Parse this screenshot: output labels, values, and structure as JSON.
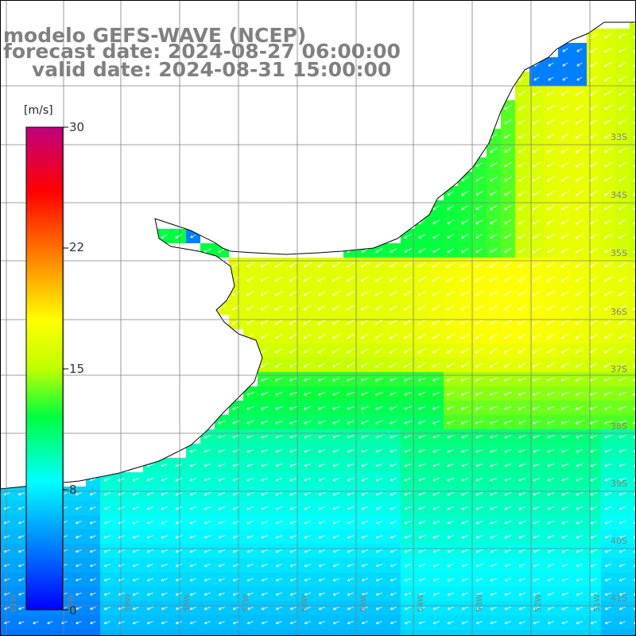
{
  "header": {
    "line1": "modelo GEFS-WAVE (NCEP)",
    "line2": "forecast date: 2024-08-27 06:00:00",
    "line3": "valid date: 2024-08-31 15:00:00"
  },
  "colorbar": {
    "unit": "[m/s]",
    "ticks": [
      "30",
      "22",
      "15",
      "8",
      "0"
    ],
    "colors": [
      "#0000ff",
      "#00a0ff",
      "#00ffff",
      "#00ff80",
      "#00ff00",
      "#b0ff00",
      "#ffff00",
      "#ffa000",
      "#ff0000",
      "#c00080"
    ]
  },
  "map": {
    "lat_labels": [
      "33S",
      "34S",
      "35S",
      "36S",
      "37S",
      "38S",
      "39S",
      "40S",
      "41S"
    ],
    "lon_labels": [
      "61W",
      "60W",
      "59W",
      "58W",
      "57W",
      "56W",
      "55W",
      "54W",
      "53W",
      "52W",
      "51W"
    ],
    "colors": {
      "land": "#ffffff",
      "coast": "#000000",
      "grid": "#808080",
      "arrow": "#ffffff"
    }
  }
}
